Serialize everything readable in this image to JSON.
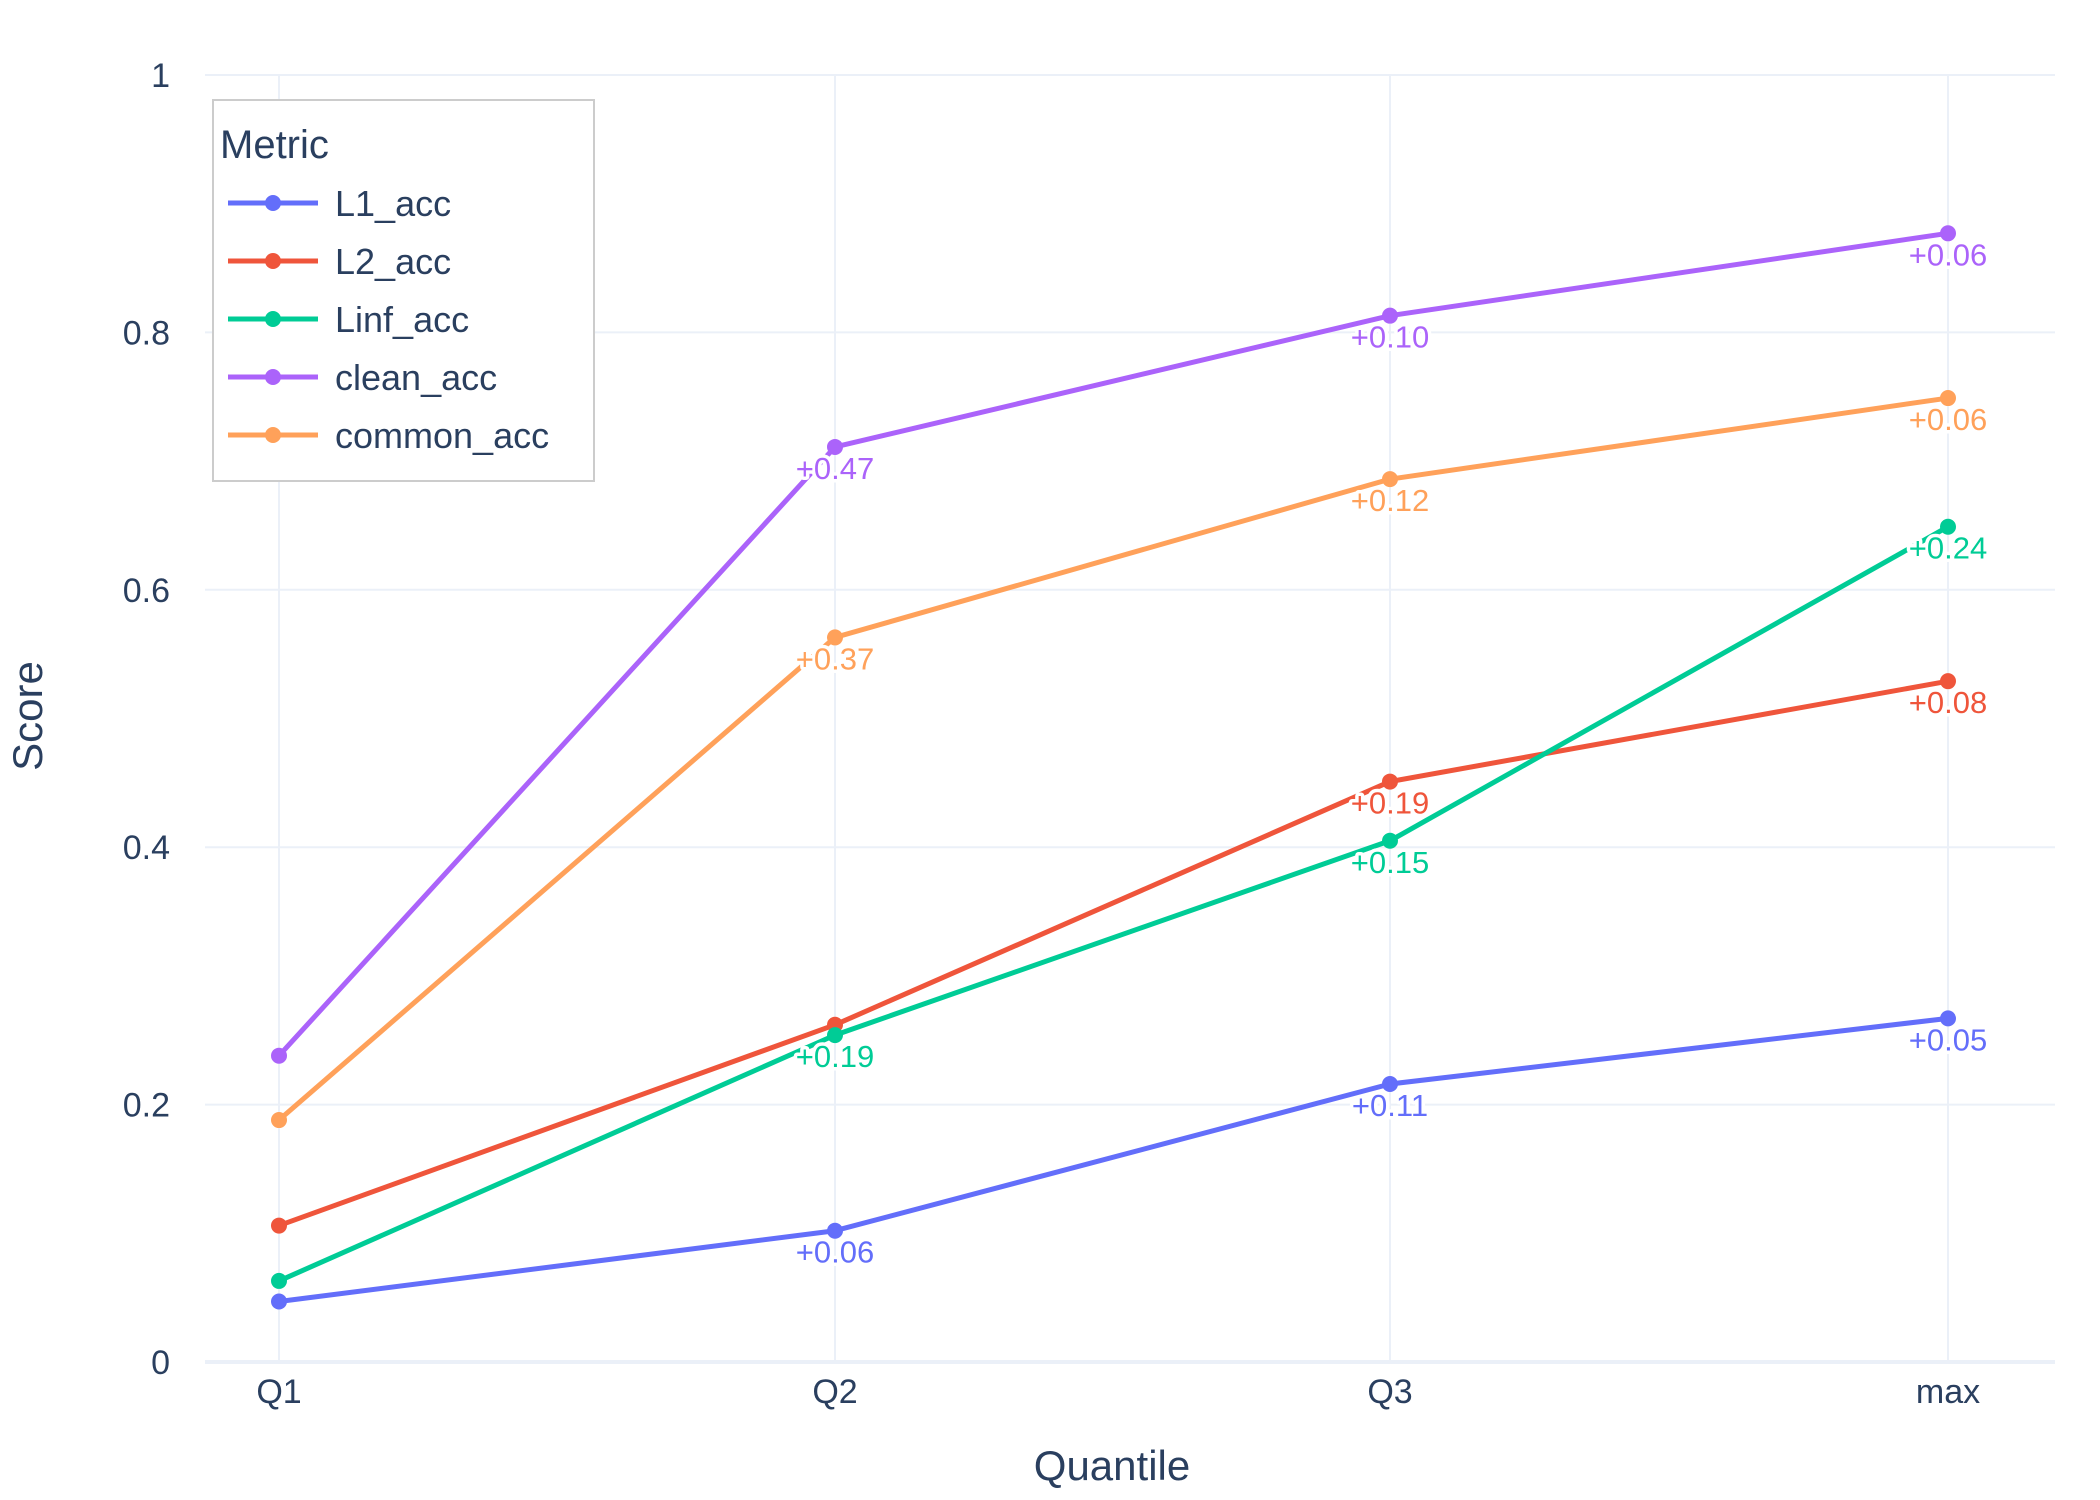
{
  "chart_data": {
    "type": "line",
    "xlabel": "Quantile",
    "ylabel": "Score",
    "categories": [
      "Q1",
      "Q2",
      "Q3",
      "max"
    ],
    "ylim": [
      0,
      1
    ],
    "yticks": [
      0,
      0.2,
      0.4,
      0.6,
      0.8,
      1
    ],
    "ytick_labels": [
      "0",
      "0.2",
      "0.4",
      "0.6",
      "0.8",
      "1"
    ],
    "grid": true,
    "legend": {
      "title": "Metric",
      "position": "top-left"
    },
    "series": [
      {
        "name": "L1_acc",
        "color": "#636efa",
        "values": [
          0.047,
          0.102,
          0.216,
          0.267
        ],
        "annotations": [
          "",
          "+0.06",
          "+0.11",
          "+0.05"
        ]
      },
      {
        "name": "L2_acc",
        "color": "#ef553b",
        "values": [
          0.106,
          0.262,
          0.451,
          0.529
        ],
        "annotations": [
          "",
          "",
          "+0.19",
          "+0.08"
        ]
      },
      {
        "name": "Linf_acc",
        "color": "#00cc96",
        "values": [
          0.063,
          0.254,
          0.405,
          0.649
        ],
        "annotations": [
          "",
          "+0.19",
          "+0.15",
          "+0.24"
        ]
      },
      {
        "name": "clean_acc",
        "color": "#ab63fa",
        "values": [
          0.238,
          0.711,
          0.813,
          0.877
        ],
        "annotations": [
          "",
          "+0.47",
          "+0.10",
          "+0.06"
        ]
      },
      {
        "name": "common_acc",
        "color": "#ffa15a",
        "values": [
          0.188,
          0.563,
          0.686,
          0.749
        ],
        "annotations": [
          "",
          "+0.37",
          "+0.12",
          "+0.06"
        ]
      }
    ]
  }
}
